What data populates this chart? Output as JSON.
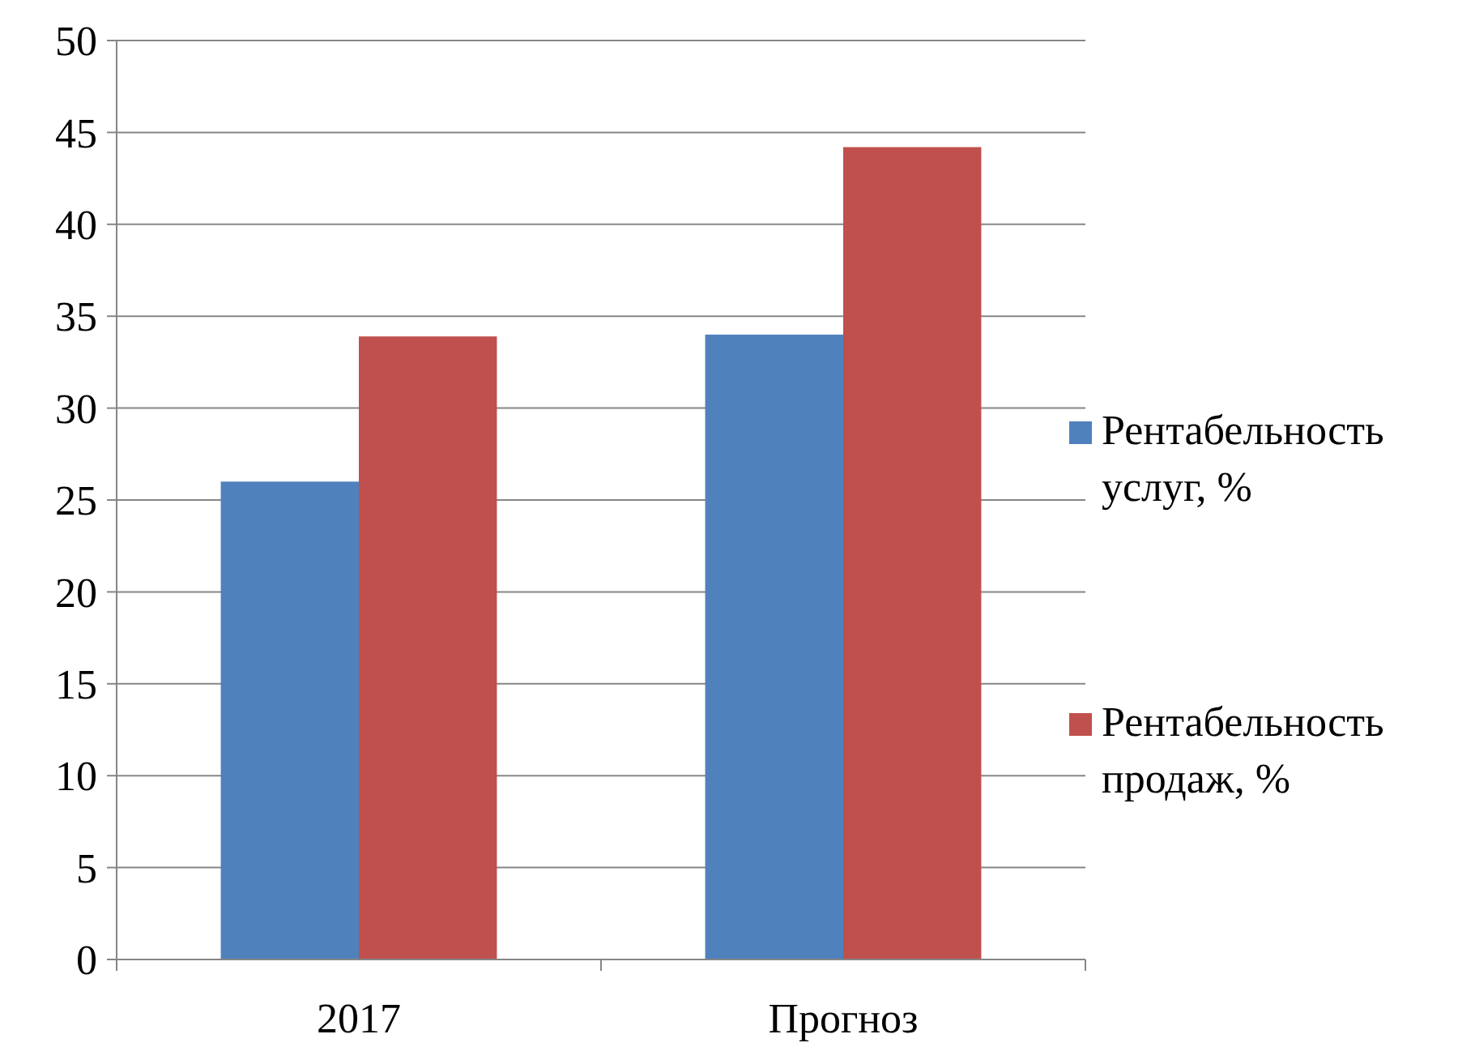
{
  "chart_data": {
    "type": "bar",
    "categories": [
      "2017",
      "Прогноз"
    ],
    "series": [
      {
        "name": "Рентабельность услуг, %",
        "color": "#4f81bd",
        "values": [
          26,
          34
        ]
      },
      {
        "name": "Рентабельность продаж, %",
        "color": "#c0504d",
        "values": [
          33.9,
          44.2
        ]
      }
    ],
    "ylim": [
      0,
      50
    ],
    "yticks": [
      0,
      5,
      10,
      15,
      20,
      25,
      30,
      35,
      40,
      45,
      50
    ],
    "grid": "y",
    "legend": "right"
  }
}
